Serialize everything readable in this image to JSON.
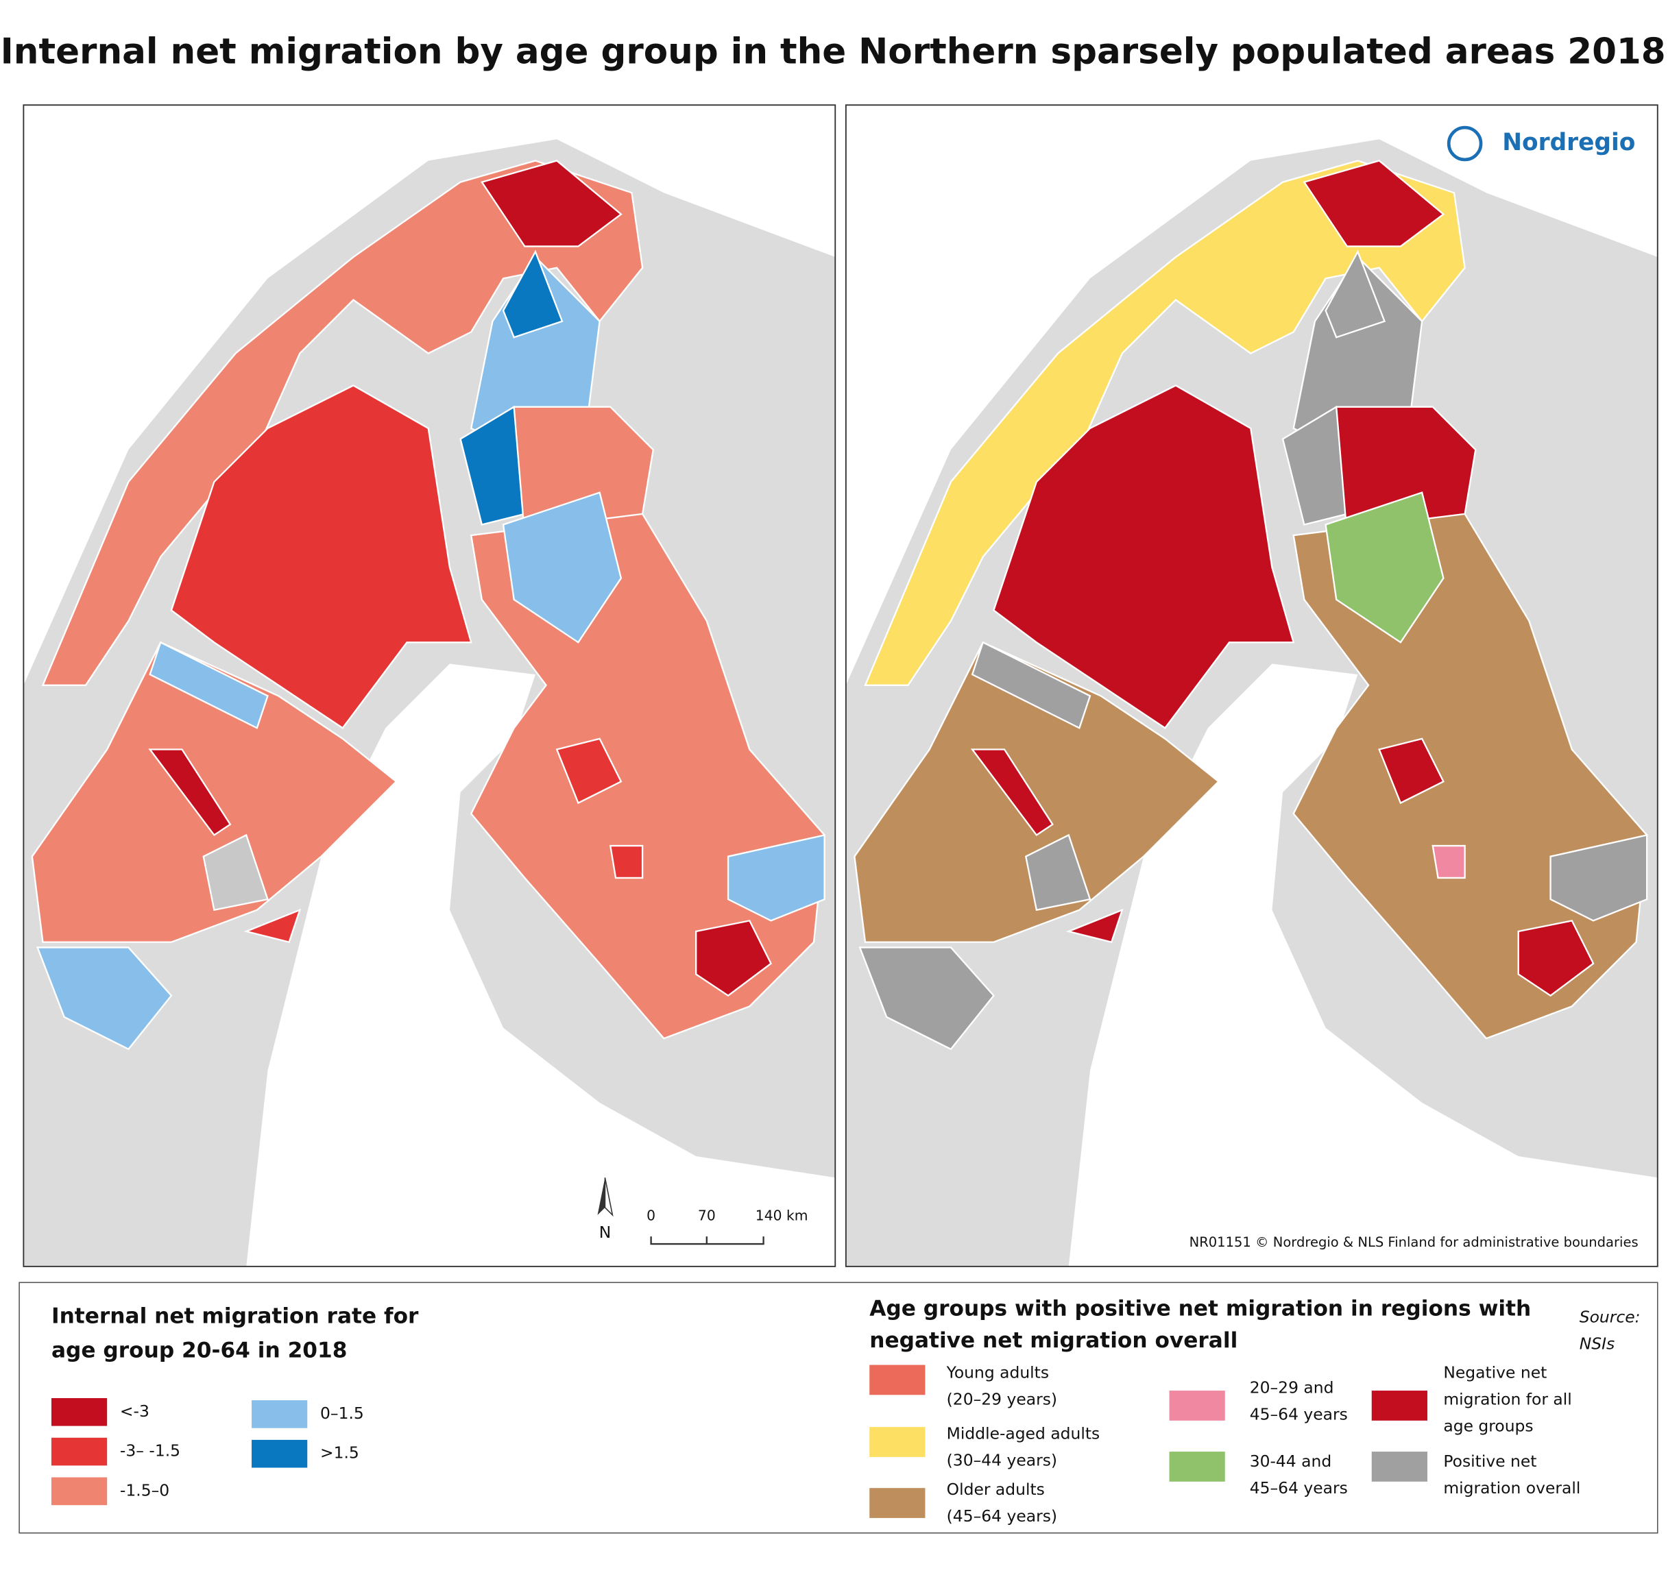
{
  "title": "Internal net migration by age group in the Northern sparsely populated areas 2018",
  "map_left": {
    "legend": {
      "title": [
        "Internal net migration rate for",
        "age group 20-64 in 2018"
      ],
      "classes": [
        {
          "label": "<-3",
          "color": "#c20e1e"
        },
        {
          "label": "-3– -1.5",
          "color": "#e63535"
        },
        {
          "label": "-1.5–0",
          "color": "#ef8470"
        },
        {
          "label": "0–1.5",
          "color": "#88bfea"
        },
        {
          "label": ">1.5",
          "color": "#0a78c0"
        }
      ]
    },
    "scale_bar": {
      "north": "N",
      "labels": [
        "0",
        "70",
        "140 km"
      ]
    }
  },
  "map_right": {
    "logo": "Nordregio",
    "credit": "NR01151 © Nordregio & NLS Finland for administrative boundaries",
    "legend": {
      "title": [
        "Age groups with positive net migration in regions with",
        "negative net migration overall"
      ],
      "classes": [
        {
          "label": [
            "Young adults",
            "(20–29 years)"
          ],
          "color": "#ec6a5a"
        },
        {
          "label": [
            "Middle-aged adults",
            "(30–44 years)"
          ],
          "color": "#fcdf63"
        },
        {
          "label": [
            "Older adults",
            "(45–64 years)"
          ],
          "color": "#bf8e5d"
        },
        {
          "label": [
            "20–29 and",
            "45–64 years"
          ],
          "color": "#ef88a0"
        },
        {
          "label": [
            "30-44 and",
            "45–64 years"
          ],
          "color": "#8fc26a"
        },
        {
          "label": [
            "Negative net",
            "migration for all",
            "age groups"
          ],
          "color": "#c20e1e"
        },
        {
          "label": [
            "Positive net",
            "migration overall"
          ],
          "color": "#a0a0a0"
        }
      ]
    }
  },
  "source": [
    "Source:",
    "NSIs"
  ]
}
